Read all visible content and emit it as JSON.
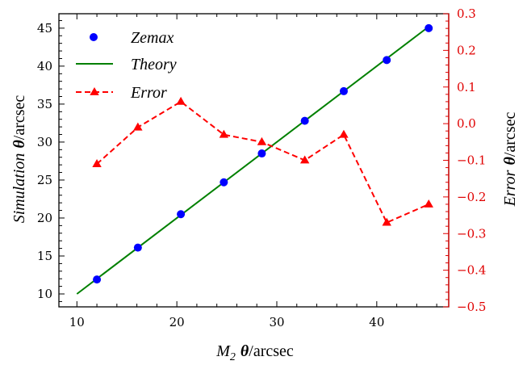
{
  "chart_data": {
    "type": "line",
    "x": [
      12.0,
      16.1,
      20.4,
      24.7,
      28.5,
      32.8,
      36.7,
      41.0,
      45.2
    ],
    "series": [
      {
        "name": "Zemax",
        "axis": "left",
        "style": "markers",
        "values": [
          11.9,
          16.1,
          20.5,
          24.7,
          28.5,
          32.8,
          36.7,
          40.8,
          45.0
        ]
      },
      {
        "name": "Theory",
        "axis": "left",
        "style": "line",
        "x": [
          10,
          45
        ],
        "values": [
          10,
          45
        ]
      },
      {
        "name": "Error",
        "axis": "right",
        "style": "dashed-triangle",
        "values": [
          -0.11,
          -0.01,
          0.06,
          -0.03,
          -0.05,
          -0.1,
          -0.03,
          -0.27,
          -0.22
        ]
      }
    ],
    "xlabel_main": "M",
    "xlabel_sub": "2",
    "xlabel_sym": "θ",
    "xlabel_unit": "/arcsec",
    "ylabel_left_main": "Simulation",
    "ylabel_left_sym": "θ",
    "ylabel_left_unit": "/arcsec",
    "ylabel_right_main": "Error",
    "ylabel_right_sym": "θ",
    "ylabel_right_unit": "/arcsec",
    "xlim": [
      8.2,
      47.2
    ],
    "ylim_left": [
      8.3,
      46.9
    ],
    "ylim_right": [
      -0.5,
      0.3
    ],
    "x_ticks": [
      10,
      20,
      30,
      40
    ],
    "y_ticks_left": [
      10,
      15,
      20,
      25,
      30,
      35,
      40,
      45
    ],
    "y_ticks_right": [
      0.3,
      0.2,
      0.1,
      0.0,
      -0.1,
      -0.2,
      -0.3,
      -0.4,
      -0.5
    ],
    "y_tick_labels_right": [
      "0.3",
      "0.2",
      "0.1",
      "0.0",
      "−0.1",
      "−0.2",
      "−0.3",
      "−0.4",
      "−0.5"
    ],
    "legend_position": "top-left",
    "colors": {
      "zemax": "#0000ff",
      "theory": "#008000",
      "error": "#ff0000",
      "right_axis": "#e00000"
    }
  }
}
